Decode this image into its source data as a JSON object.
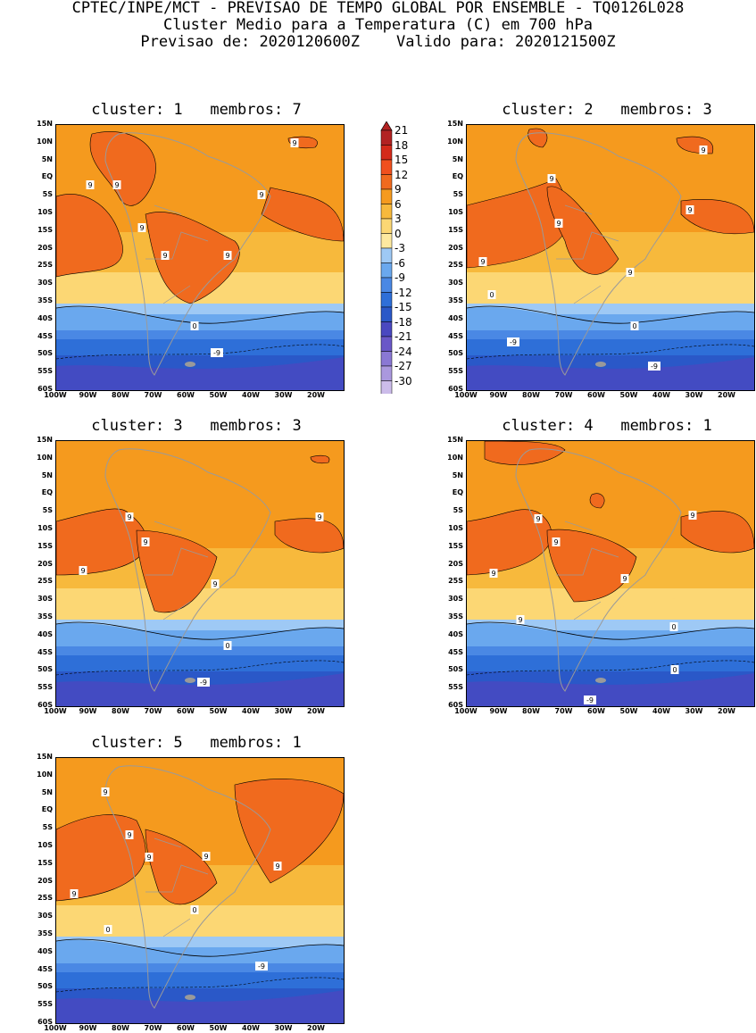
{
  "header": {
    "line1": "CPTEC/INPE/MCT - PREVISAO DE TEMPO GLOBAL POR ENSEMBLE - TQ0126L028",
    "line2": "Cluster Medio para a Temperatura (C) em 700 hPa",
    "line3": "Previsao de: 2020120600Z    Valido para: 2020121500Z"
  },
  "lat_ticks": [
    "15N",
    "10N",
    "5N",
    "EQ",
    "5S",
    "10S",
    "15S",
    "20S",
    "25S",
    "30S",
    "35S",
    "40S",
    "45S",
    "50S",
    "55S",
    "60S"
  ],
  "lon_ticks": [
    "100W",
    "90W",
    "80W",
    "70W",
    "60W",
    "50W",
    "40W",
    "30W",
    "20W"
  ],
  "panels": [
    {
      "title": "cluster: 1   membros: 7",
      "contour_labels": [
        "9",
        "9",
        "9",
        "9",
        "9",
        "9",
        "9",
        "0",
        "-9"
      ]
    },
    {
      "title": "cluster: 2   membros: 3",
      "contour_labels": [
        "9",
        "9",
        "9",
        "9",
        "9",
        "9",
        "0",
        "0",
        "-9",
        "-9"
      ]
    },
    {
      "title": "cluster: 3   membros: 3",
      "contour_labels": [
        "9",
        "9",
        "9",
        "9",
        "9",
        "0",
        "-9"
      ]
    },
    {
      "title": "cluster: 4   membros: 1",
      "contour_labels": [
        "9",
        "9",
        "9",
        "9",
        "9",
        "9",
        "0",
        "0",
        "-9"
      ]
    },
    {
      "title": "cluster: 5   membros: 1",
      "contour_labels": [
        "9",
        "9",
        "9",
        "9",
        "9",
        "9",
        "0",
        "0",
        "-9"
      ]
    }
  ],
  "colorbar": {
    "labels": [
      "21",
      "18",
      "15",
      "12",
      "9",
      "6",
      "3",
      "0",
      "-3",
      "-6",
      "-9",
      "-12",
      "-15",
      "-18",
      "-21",
      "-24",
      "-27",
      "-30"
    ],
    "colors": [
      "#b22222",
      "#d42a1a",
      "#f0501e",
      "#f06a1e",
      "#f59a1e",
      "#f7b93c",
      "#fcd774",
      "#fde9a0",
      "#9ec9f5",
      "#6aa8ee",
      "#4a88e4",
      "#2e6fd8",
      "#2a58c8",
      "#4a48c0",
      "#6a58c8",
      "#8a78d4",
      "#aa98de",
      "#ccbcea"
    ]
  }
}
